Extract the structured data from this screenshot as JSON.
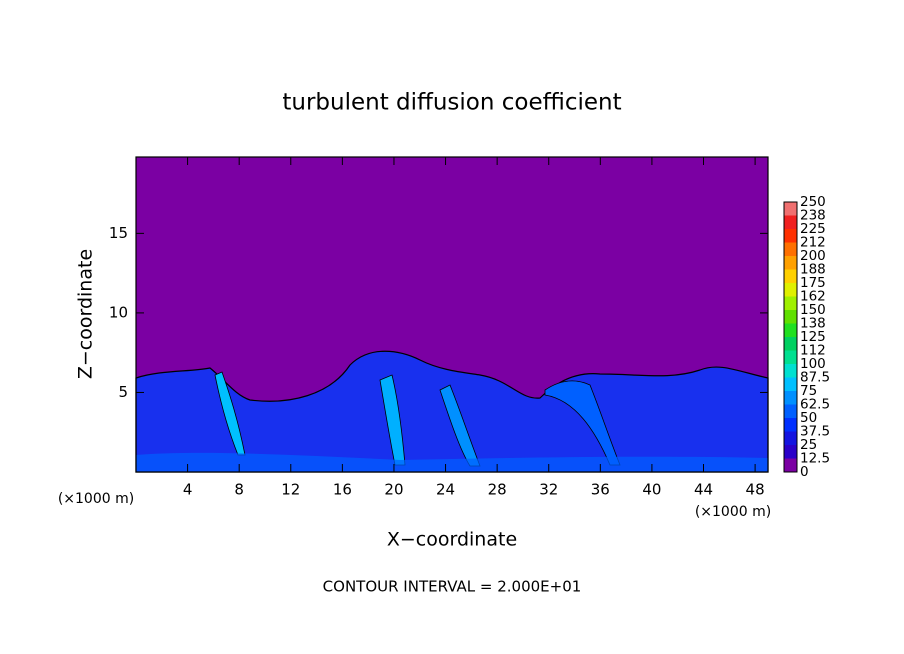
{
  "chart_data": {
    "type": "contour",
    "title": "turbulent diffusion coefficient",
    "x_label": "X−coordinate",
    "y_label": "Z−coordinate",
    "x_unit_label": "(×1000 m)",
    "footnote": "CONTOUR INTERVAL = 2.000E+01",
    "xlim": [
      0,
      49
    ],
    "xticks": [
      4,
      8,
      12,
      16,
      20,
      24,
      28,
      32,
      36,
      40,
      44,
      48
    ],
    "ylim": [
      0,
      19.8
    ],
    "yticks": [
      5,
      10,
      15
    ],
    "colorbar": {
      "levels": [
        0,
        12.5,
        25,
        37.5,
        50,
        62.5,
        75,
        87.5,
        100,
        112,
        125,
        138,
        150,
        162,
        175,
        188,
        200,
        212,
        225,
        238,
        250
      ],
      "colors": [
        "#7b00a3",
        "#2a00c8",
        "#1414e0",
        "#0030ff",
        "#0060ff",
        "#0090ff",
        "#00c0ff",
        "#00e0d0",
        "#00e090",
        "#00d060",
        "#20e020",
        "#60e000",
        "#a0f000",
        "#e0f000",
        "#ffd000",
        "#ffa000",
        "#ff7000",
        "#ff3000",
        "#f02020",
        "#f07070"
      ]
    }
  }
}
